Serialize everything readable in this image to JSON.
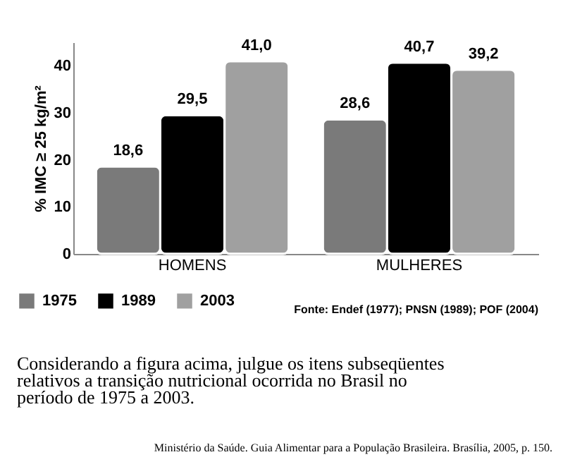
{
  "chart_data": {
    "type": "bar",
    "ylabel": "% IMC ≥ 25 kg/m²",
    "categories": [
      "HOMENS",
      "MULHERES"
    ],
    "series": [
      {
        "name": "1975",
        "color": "#7a7a7a",
        "values": [
          18.6,
          28.6
        ],
        "value_labels": [
          "18,6",
          "28,6"
        ]
      },
      {
        "name": "1989",
        "color": "#000000",
        "values": [
          29.5,
          40.7
        ],
        "value_labels": [
          "29,5",
          "40,7"
        ]
      },
      {
        "name": "2003",
        "color": "#a0a0a0",
        "values": [
          41.0,
          39.2
        ],
        "value_labels": [
          "41,0",
          "39,2"
        ]
      }
    ],
    "ylim": [
      0,
      45
    ],
    "yticks": [
      0,
      10,
      20,
      30,
      40
    ],
    "grid": false,
    "legend": "bottom left",
    "annotations": [
      "Fonte: Endef (1977); PNSN (1989); POF (2004)",
      "Considerando a figura acima, julgue os itens subseqüentes relativos a transição nutricional ocorrida no Brasil no período de 1975 a 2003.",
      "Ministério da Saúde. Guia Alimentar para a População Brasileira. Brasília, 2005, p. 150."
    ]
  }
}
